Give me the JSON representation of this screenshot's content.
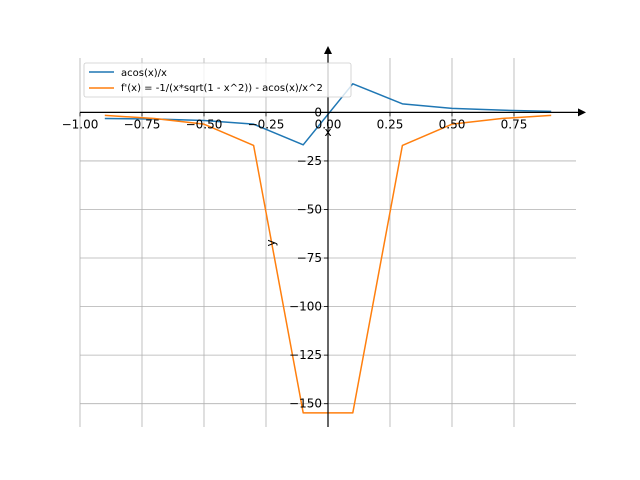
{
  "chart_data": {
    "type": "line",
    "xlabel": "x",
    "ylabel": "y",
    "xlim": [
      -1.0,
      1.0
    ],
    "ylim": [
      -162,
      28
    ],
    "grid": true,
    "legend_position": "top-left",
    "x_ticks": [
      -1.0,
      -0.75,
      -0.5,
      -0.25,
      0.0,
      0.25,
      0.5,
      0.75
    ],
    "x_tick_labels": [
      "−1.00",
      "−0.75",
      "−0.50",
      "−0.25",
      "0.00",
      "0.25",
      "0.50",
      "0.75"
    ],
    "y_ticks": [
      0,
      -25,
      -50,
      -75,
      -100,
      -125,
      -150
    ],
    "y_tick_labels": [
      "0",
      "−25",
      "−50",
      "−75",
      "−100",
      "−125",
      "−150"
    ],
    "series": [
      {
        "name": "acos(x)/x",
        "color": "#1f77b4",
        "x": [
          -0.9,
          -0.7,
          -0.5,
          -0.3,
          -0.1,
          0.1,
          0.3,
          0.5,
          0.7,
          0.9
        ],
        "y": [
          -3.16,
          -3.39,
          -4.19,
          -6.07,
          -16.71,
          14.71,
          4.4,
          2.09,
          1.14,
          0.5
        ]
      },
      {
        "name": "f'(x) = -1/(x*sqrt(1 - x^2)) - acos(x)/x^2",
        "color": "#ff7f0e",
        "x": [
          -0.9,
          -0.7,
          -0.5,
          -0.3,
          -0.1,
          0.1,
          0.3,
          0.5,
          0.7,
          0.9
        ],
        "y": [
          -1.52,
          -3.16,
          -6.07,
          -17.0,
          -154.7,
          -154.7,
          -17.0,
          -6.07,
          -3.16,
          -1.52
        ]
      }
    ]
  }
}
